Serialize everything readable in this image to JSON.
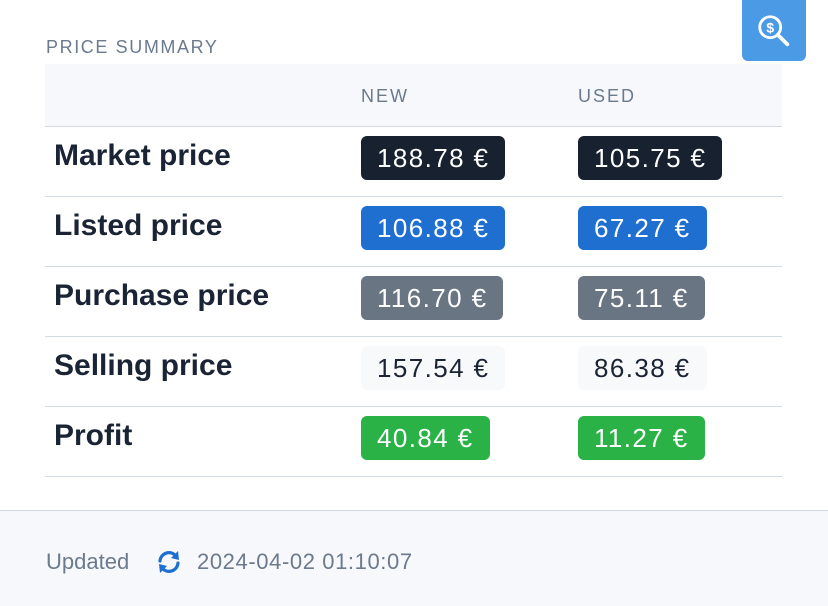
{
  "search_button": {
    "icon": "dollar-search-icon",
    "color": "#4b9ae6"
  },
  "section_title": "PRICE SUMMARY",
  "columns": {
    "new": "NEW",
    "used": "USED"
  },
  "rows": [
    {
      "label": "Market price",
      "new": "188.78 €",
      "used": "105.75 €",
      "style": "dark",
      "color": "#17212f"
    },
    {
      "label": "Listed price",
      "new": "106.88 €",
      "used": "67.27 €",
      "style": "blue",
      "color": "#1f6fd0"
    },
    {
      "label": "Purchase price",
      "new": "116.70 €",
      "used": "75.11 €",
      "style": "gray",
      "color": "#6a7584"
    },
    {
      "label": "Selling price",
      "new": "157.54 €",
      "used": "86.38 €",
      "style": "plain",
      "color": "#f8f9fb"
    },
    {
      "label": "Profit",
      "new": "40.84 €",
      "used": "11.27 €",
      "style": "green",
      "color": "#2ab246"
    }
  ],
  "footer": {
    "updated_label": "Updated",
    "refresh_icon": "refresh-icon",
    "timestamp": "2024-04-02 01:10:07"
  }
}
